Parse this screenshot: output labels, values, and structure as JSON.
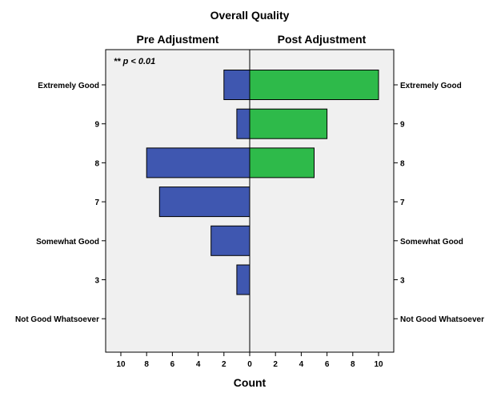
{
  "chart_data": {
    "type": "bar",
    "orientation": "horizontal",
    "layout": "back-to-back",
    "title": "Overall Quality",
    "xlabel": "Count",
    "annotation": "** p < 0.01",
    "categories": [
      "Extremely Good",
      "9",
      "8",
      "7",
      "Somewhat Good",
      "3",
      "Not Good Whatsoever"
    ],
    "xlim": [
      0,
      10
    ],
    "ticks": [
      "10",
      "8",
      "6",
      "4",
      "2",
      "0",
      "2",
      "4",
      "6",
      "8",
      "10"
    ],
    "grid": false,
    "series": [
      {
        "name": "Pre Adjustment",
        "side": "left",
        "color": "#3f57b0",
        "values": [
          2,
          1,
          8,
          7,
          3,
          1,
          0
        ]
      },
      {
        "name": "Post Adjustment",
        "side": "right",
        "color": "#2eba4a",
        "values": [
          10,
          6,
          5,
          0,
          0,
          0,
          0
        ]
      }
    ],
    "plot_background": "#f0f0f0"
  }
}
